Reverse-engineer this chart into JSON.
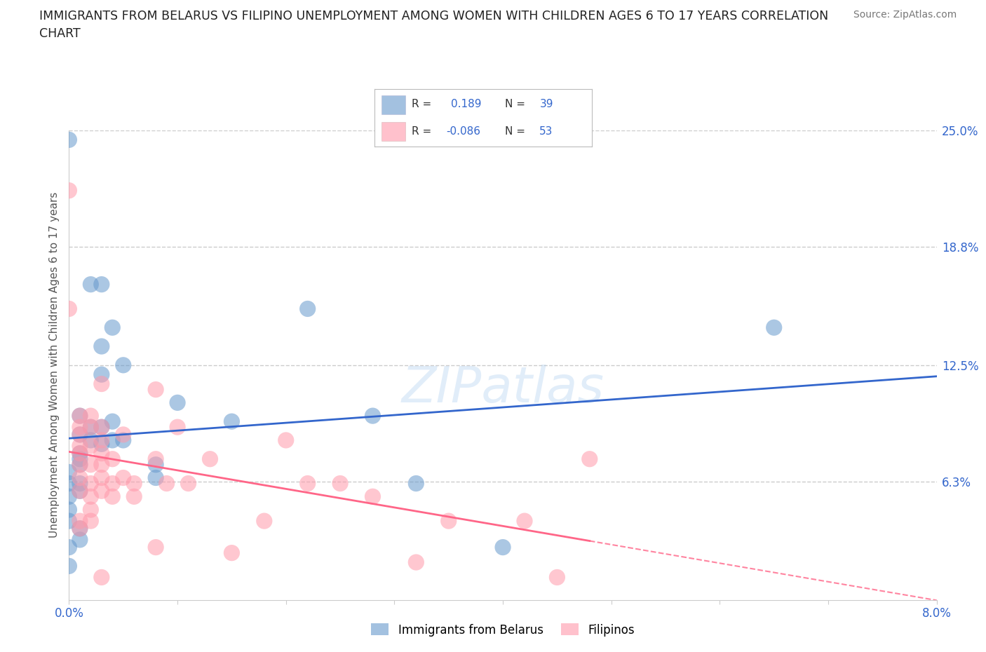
{
  "title_line1": "IMMIGRANTS FROM BELARUS VS FILIPINO UNEMPLOYMENT AMONG WOMEN WITH CHILDREN AGES 6 TO 17 YEARS CORRELATION",
  "title_line2": "CHART",
  "source": "Source: ZipAtlas.com",
  "ylabel": "Unemployment Among Women with Children Ages 6 to 17 years",
  "xlim": [
    0.0,
    0.08
  ],
  "ylim": [
    0.0,
    0.25
  ],
  "xticks": [
    0.0,
    0.01,
    0.02,
    0.03,
    0.04,
    0.05,
    0.06,
    0.07,
    0.08
  ],
  "xticklabels_show": {
    "0.0": "0.0%",
    "0.08": "8.0%"
  },
  "yticks_right": [
    0.063,
    0.125,
    0.188,
    0.25
  ],
  "ytick_right_labels": [
    "6.3%",
    "12.5%",
    "18.8%",
    "25.0%"
  ],
  "grid_color": "#cccccc",
  "background_color": "#ffffff",
  "watermark": "ZIPatlas",
  "belarus_color": "#6699cc",
  "filipino_color": "#ff99aa",
  "legend_belarus_label": "Immigrants from Belarus",
  "legend_filipino_label": "Filipinos",
  "belarus_points": [
    [
      0.0,
      0.245
    ],
    [
      0.002,
      0.168
    ],
    [
      0.003,
      0.135
    ],
    [
      0.004,
      0.145
    ],
    [
      0.005,
      0.125
    ],
    [
      0.004,
      0.095
    ],
    [
      0.003,
      0.168
    ],
    [
      0.002,
      0.092
    ],
    [
      0.003,
      0.083
    ],
    [
      0.002,
      0.085
    ],
    [
      0.001,
      0.075
    ],
    [
      0.001,
      0.078
    ],
    [
      0.001,
      0.072
    ],
    [
      0.001,
      0.088
    ],
    [
      0.001,
      0.098
    ],
    [
      0.001,
      0.062
    ],
    [
      0.001,
      0.058
    ],
    [
      0.0,
      0.062
    ],
    [
      0.0,
      0.068
    ],
    [
      0.0,
      0.055
    ],
    [
      0.0,
      0.048
    ],
    [
      0.0,
      0.042
    ],
    [
      0.001,
      0.038
    ],
    [
      0.001,
      0.032
    ],
    [
      0.0,
      0.028
    ],
    [
      0.0,
      0.018
    ],
    [
      0.003,
      0.12
    ],
    [
      0.003,
      0.092
    ],
    [
      0.004,
      0.085
    ],
    [
      0.005,
      0.085
    ],
    [
      0.008,
      0.072
    ],
    [
      0.008,
      0.065
    ],
    [
      0.01,
      0.105
    ],
    [
      0.015,
      0.095
    ],
    [
      0.022,
      0.155
    ],
    [
      0.028,
      0.098
    ],
    [
      0.032,
      0.062
    ],
    [
      0.04,
      0.028
    ],
    [
      0.065,
      0.145
    ]
  ],
  "filipino_points": [
    [
      0.0,
      0.218
    ],
    [
      0.0,
      0.155
    ],
    [
      0.001,
      0.098
    ],
    [
      0.001,
      0.092
    ],
    [
      0.001,
      0.088
    ],
    [
      0.001,
      0.082
    ],
    [
      0.001,
      0.078
    ],
    [
      0.001,
      0.072
    ],
    [
      0.001,
      0.065
    ],
    [
      0.001,
      0.058
    ],
    [
      0.001,
      0.042
    ],
    [
      0.001,
      0.038
    ],
    [
      0.002,
      0.098
    ],
    [
      0.002,
      0.092
    ],
    [
      0.002,
      0.082
    ],
    [
      0.002,
      0.072
    ],
    [
      0.002,
      0.062
    ],
    [
      0.002,
      0.055
    ],
    [
      0.002,
      0.048
    ],
    [
      0.002,
      0.042
    ],
    [
      0.003,
      0.115
    ],
    [
      0.003,
      0.092
    ],
    [
      0.003,
      0.085
    ],
    [
      0.003,
      0.078
    ],
    [
      0.003,
      0.072
    ],
    [
      0.003,
      0.065
    ],
    [
      0.003,
      0.058
    ],
    [
      0.003,
      0.012
    ],
    [
      0.004,
      0.075
    ],
    [
      0.004,
      0.062
    ],
    [
      0.004,
      0.055
    ],
    [
      0.005,
      0.088
    ],
    [
      0.005,
      0.065
    ],
    [
      0.006,
      0.062
    ],
    [
      0.006,
      0.055
    ],
    [
      0.008,
      0.112
    ],
    [
      0.008,
      0.075
    ],
    [
      0.008,
      0.028
    ],
    [
      0.009,
      0.062
    ],
    [
      0.01,
      0.092
    ],
    [
      0.011,
      0.062
    ],
    [
      0.013,
      0.075
    ],
    [
      0.015,
      0.025
    ],
    [
      0.018,
      0.042
    ],
    [
      0.02,
      0.085
    ],
    [
      0.022,
      0.062
    ],
    [
      0.025,
      0.062
    ],
    [
      0.028,
      0.055
    ],
    [
      0.032,
      0.02
    ],
    [
      0.035,
      0.042
    ],
    [
      0.042,
      0.042
    ],
    [
      0.045,
      0.012
    ],
    [
      0.048,
      0.075
    ]
  ]
}
